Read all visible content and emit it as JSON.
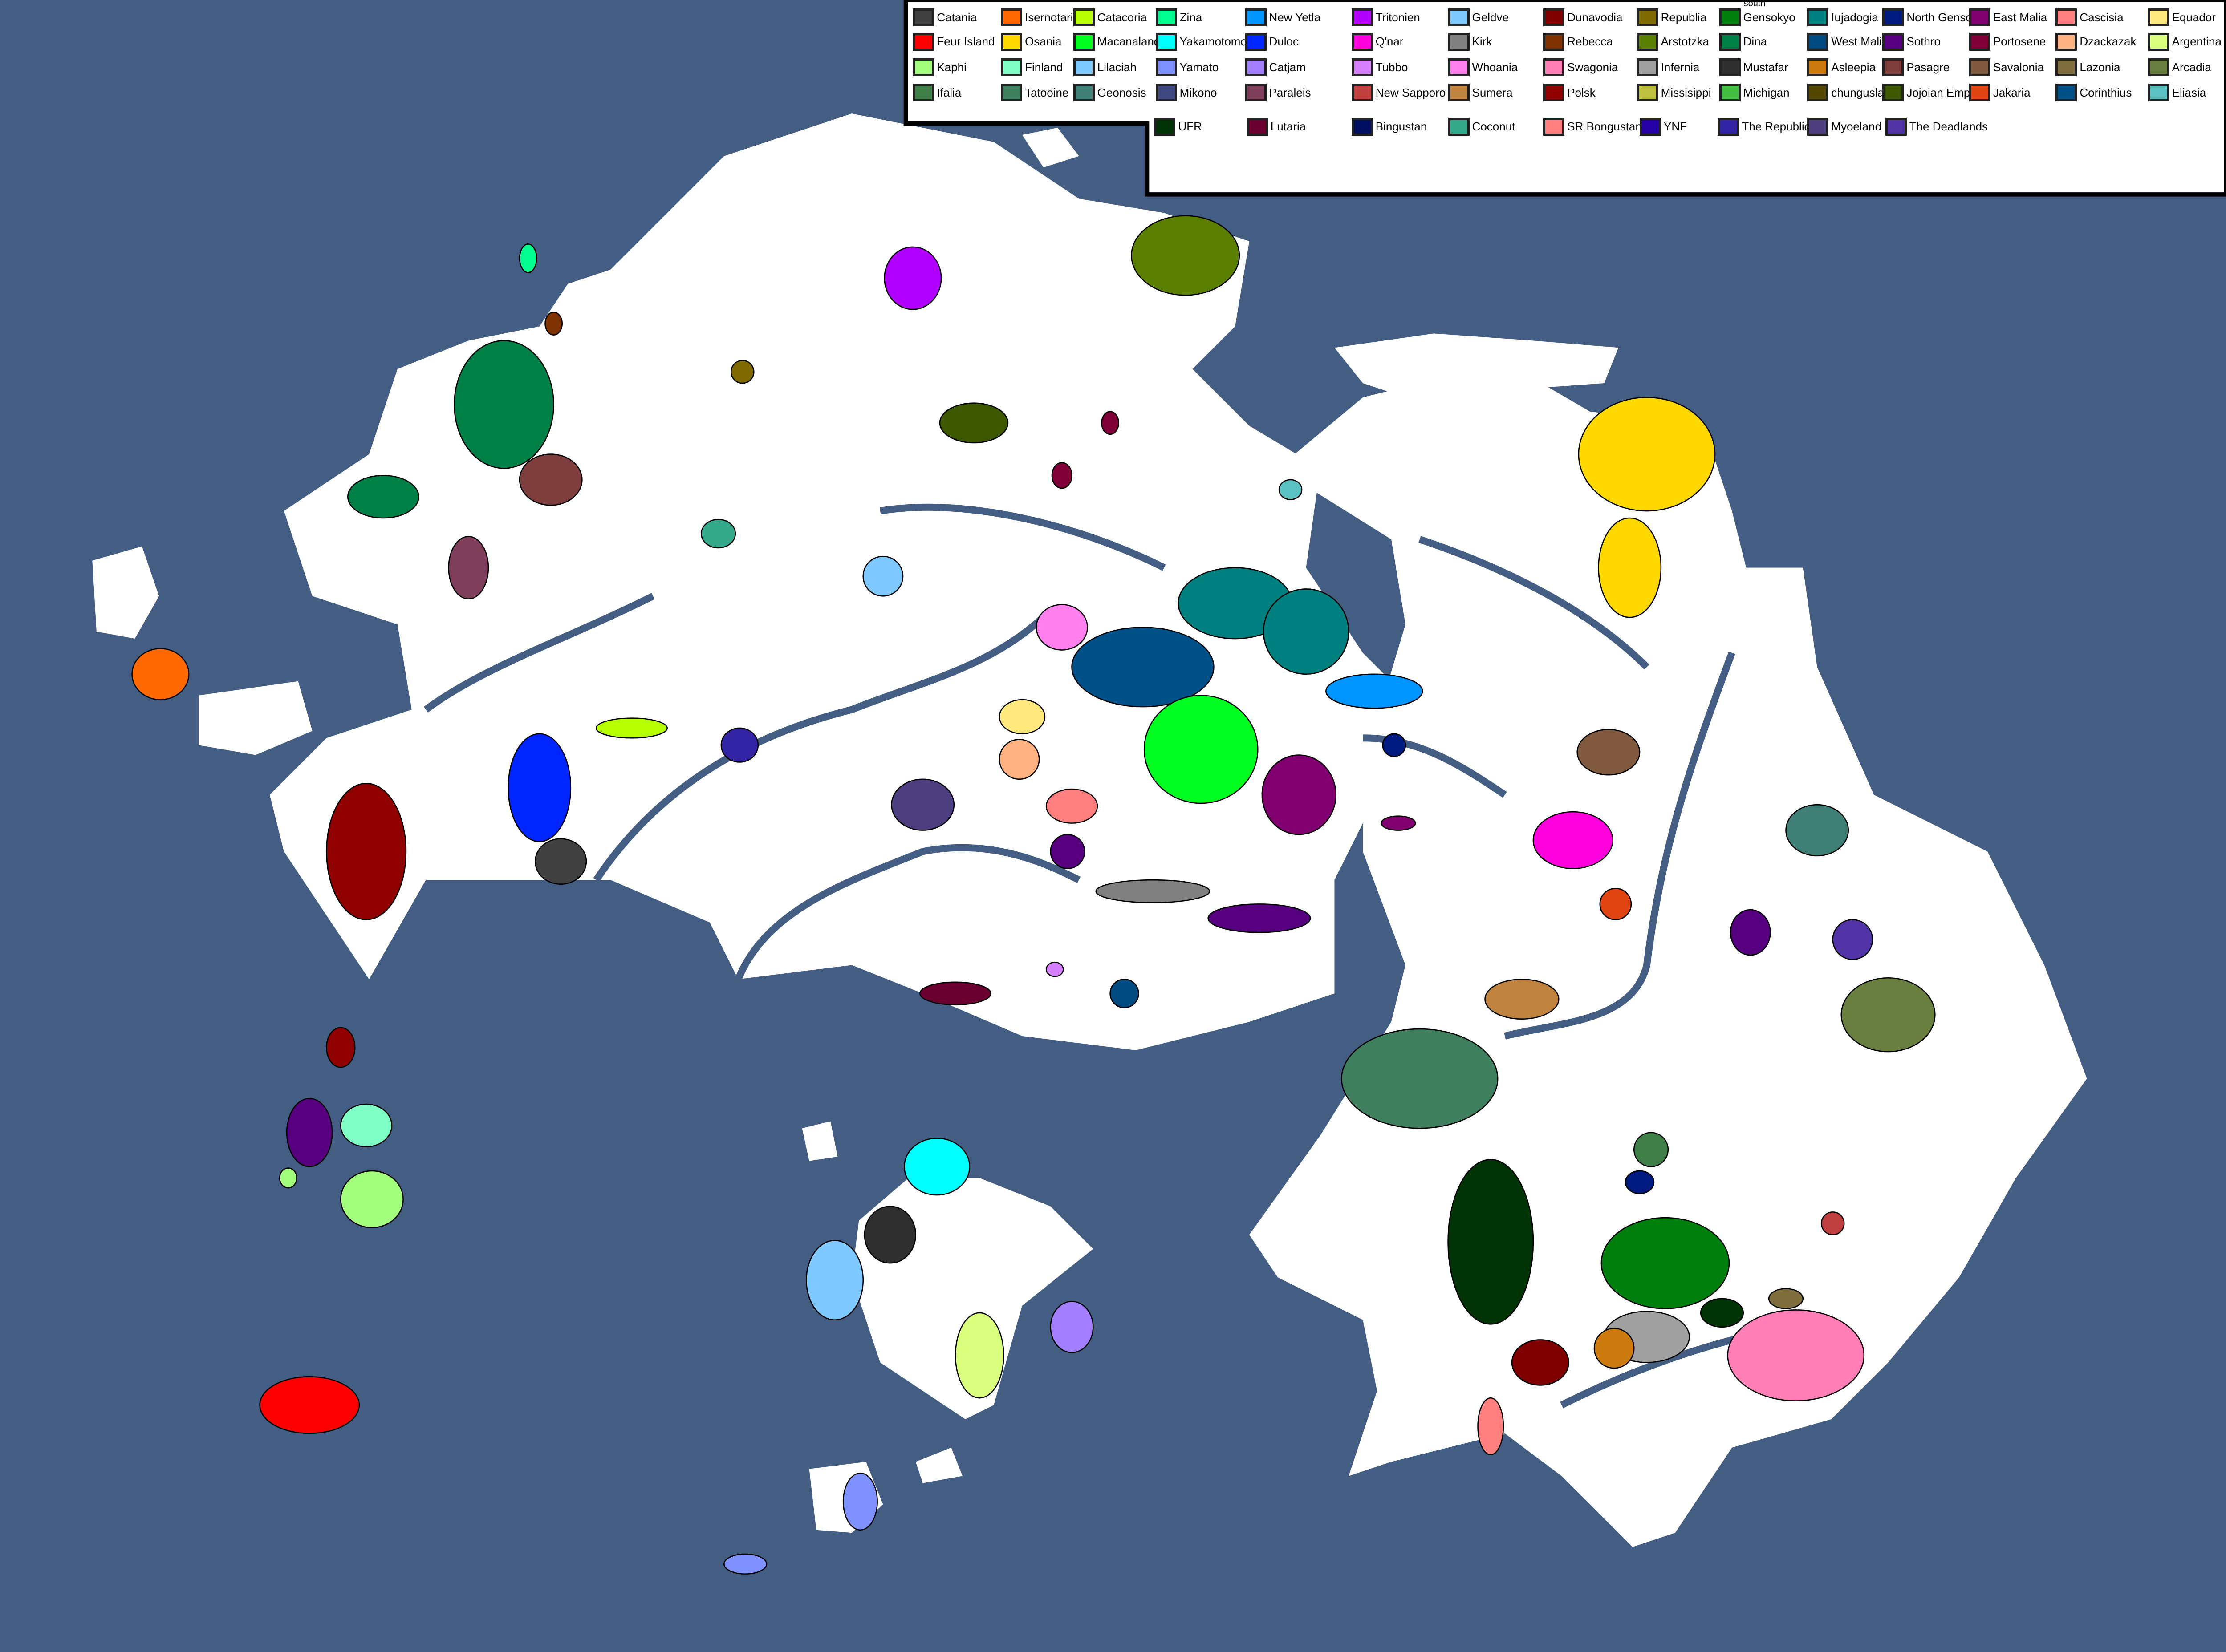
{
  "map": {
    "ocean_color": "#435e82",
    "land_color": "#ffffff",
    "legend_border_color": "#000000"
  },
  "legend": {
    "items": [
      {
        "name": "Catania",
        "color": "#404040"
      },
      {
        "name": "Isernotaria",
        "color": "#ff6a00"
      },
      {
        "name": "Catacoria",
        "color": "#b6ff00"
      },
      {
        "name": "Zina",
        "color": "#00ff90"
      },
      {
        "name": "New Yetla",
        "color": "#0094ff"
      },
      {
        "name": "Tritonien",
        "color": "#b200ff"
      },
      {
        "name": "Geldve",
        "color": "#7fc9ff"
      },
      {
        "name": "Dunavodia",
        "color": "#7f0000"
      },
      {
        "name": "Republia",
        "color": "#7f6a00"
      },
      {
        "name": "Gensokyo",
        "prefix": "south",
        "color": "#007f0e"
      },
      {
        "name": "Iujadogia",
        "color": "#007f7f"
      },
      {
        "name": "North Gensokyo",
        "color": "#001a7f"
      },
      {
        "name": "East Malia",
        "color": "#7f006e"
      },
      {
        "name": "Cascisia",
        "color": "#ff7f7f"
      },
      {
        "name": "Equador",
        "color": "#ffe97f"
      },
      {
        "name": "Feur Island",
        "color": "#ff0000"
      },
      {
        "name": "Osania",
        "color": "#ffd800"
      },
      {
        "name": "Macanaland",
        "color": "#00ff21"
      },
      {
        "name": "Yakamotomoto",
        "color": "#00ffff"
      },
      {
        "name": "Duloc",
        "color": "#0026ff"
      },
      {
        "name": "Q'nar",
        "color": "#ff00dc"
      },
      {
        "name": "Kirk",
        "color": "#808080"
      },
      {
        "name": "Rebecca",
        "color": "#7f3300"
      },
      {
        "name": "Arstotzka",
        "color": "#5b7f00"
      },
      {
        "name": "Dina",
        "color": "#007f46"
      },
      {
        "name": "West Malia",
        "color": "#004a7f"
      },
      {
        "name": "Sothro",
        "color": "#57007f"
      },
      {
        "name": "Portosene",
        "color": "#7f0037"
      },
      {
        "name": "Dzackazak",
        "color": "#ffb27f"
      },
      {
        "name": "Argentina",
        "color": "#daff7f"
      },
      {
        "name": "Kaphi",
        "color": "#a5ff7f"
      },
      {
        "name": "Finland",
        "color": "#7fffc5"
      },
      {
        "name": "Lilaciah",
        "color": "#7fc9ff"
      },
      {
        "name": "Yamato",
        "color": "#7f92ff"
      },
      {
        "name": "Catjam",
        "color": "#a17fff"
      },
      {
        "name": "Tubbo",
        "color": "#d67fff"
      },
      {
        "name": "Whoania",
        "color": "#ff7fed"
      },
      {
        "name": "Swagonia",
        "color": "#ff7fb6"
      },
      {
        "name": "Infernia",
        "color": "#a0a0a0"
      },
      {
        "name": "Mustafar",
        "color": "#303030"
      },
      {
        "name": "Asleepia",
        "color": "#cc7a0e"
      },
      {
        "name": "Pasagre",
        "color": "#7f3f3f"
      },
      {
        "name": "Savalonia",
        "color": "#7f5a3f"
      },
      {
        "name": "Lazonia",
        "color": "#7f6f3f"
      },
      {
        "name": "Arcadia",
        "color": "#6a7f3f"
      },
      {
        "name": "Ifalia",
        "color": "#3f7f47"
      },
      {
        "name": "Tatooine",
        "color": "#3f7f5f"
      },
      {
        "name": "Geonosis",
        "color": "#3f7f76"
      },
      {
        "name": "Mikono",
        "color": "#3f477f"
      },
      {
        "name": "Paraleis",
        "color": "#7f3f5a"
      },
      {
        "name": "New Sapporo",
        "color": "#bf3f3f"
      },
      {
        "name": "Sumera",
        "color": "#bf823f"
      },
      {
        "name": "Polsk",
        "color": "#8f0000"
      },
      {
        "name": "Missisippi",
        "color": "#bfbf3f"
      },
      {
        "name": "Michigan",
        "color": "#42bf42"
      },
      {
        "name": "chungusland",
        "color": "#544800"
      },
      {
        "name": "Jojoian Empire",
        "color": "#3d5700"
      },
      {
        "name": "Jakaria",
        "color": "#e04412"
      },
      {
        "name": "Corinthius",
        "color": "#00508a"
      },
      {
        "name": "Eliasia",
        "color": "#5bc1c1"
      },
      {
        "name": "UFR",
        "color": "#003306"
      },
      {
        "name": "Lutaria",
        "color": "#6b0030"
      },
      {
        "name": "Bingustan",
        "color": "#001060"
      },
      {
        "name": "Coconut",
        "color": "#35a88a"
      },
      {
        "name": "SR Bongustan",
        "color": "#ff7f7f"
      },
      {
        "name": "YNF",
        "color": "#2400a6"
      },
      {
        "name": "The Republic",
        "color": "#3224a3"
      },
      {
        "name": "Myoeland",
        "color": "#4d3f7f"
      },
      {
        "name": "The Deadlands",
        "color": "#5034a6"
      }
    ]
  }
}
